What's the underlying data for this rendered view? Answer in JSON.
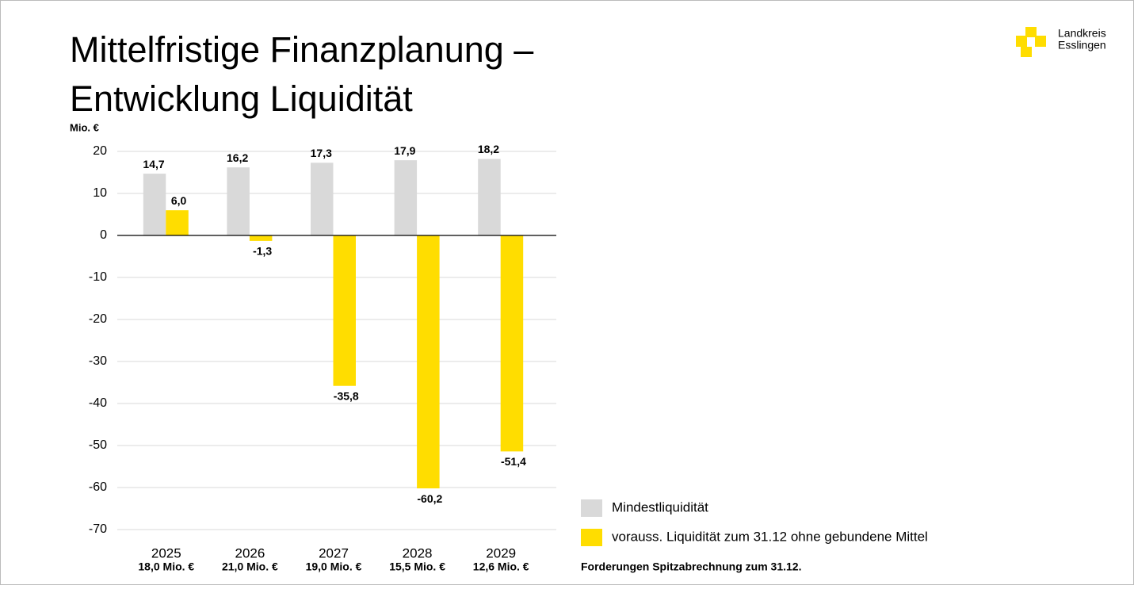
{
  "title_line1": "Mittelfristige Finanzplanung –",
  "title_line2": "Entwicklung Liquidität",
  "logo": {
    "line1": "Landkreis",
    "line2": "Esslingen"
  },
  "chart_data": {
    "type": "bar",
    "y_unit": "Mio. €",
    "categories": [
      "2025",
      "2026",
      "2027",
      "2028",
      "2029"
    ],
    "series": [
      {
        "name": "Mindestliquidität",
        "color": "#d9d9d9",
        "values": [
          14.7,
          16.2,
          17.3,
          17.9,
          18.2
        ],
        "value_labels": [
          "14,7",
          "16,2",
          "17,3",
          "17,9",
          "18,2"
        ]
      },
      {
        "name": "vorauss. Liquidität zum 31.12 ohne gebundene Mittel",
        "color": "#ffdd00",
        "values": [
          6.0,
          -1.3,
          -35.8,
          -60.2,
          -51.4
        ],
        "value_labels": [
          "6,0",
          "-1,3",
          "-35,8",
          "-60,2",
          "-51,4"
        ]
      }
    ],
    "ylim": [
      -70,
      20
    ],
    "yticks": [
      20,
      10,
      0,
      -10,
      -20,
      -30,
      -40,
      -50,
      -60,
      -70
    ],
    "grid": true,
    "receivables_title": "Forderungen Spitzabrechnung zum 31.12.",
    "receivables": [
      "18,0 Mio. €",
      "21,0 Mio. €",
      "19,0 Mio. €",
      "15,5 Mio. €",
      "12,6 Mio. €"
    ]
  }
}
